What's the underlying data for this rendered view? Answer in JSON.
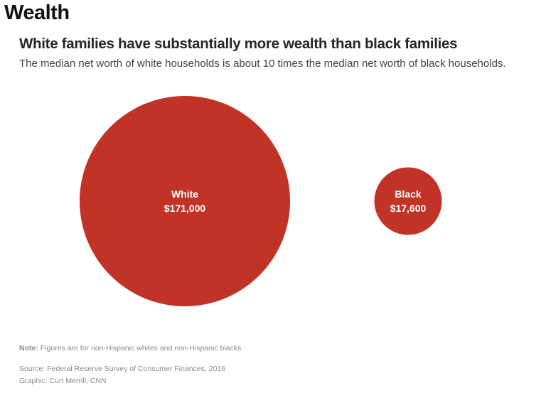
{
  "header": {
    "section": "Wealth"
  },
  "chart_data": {
    "type": "bubble",
    "title": "White families have substantially more wealth than black families",
    "subtitle": "The median net worth of white households is about 10 times the median net worth of black households.",
    "unit": "USD",
    "series": [
      {
        "name": "White",
        "value": 171000,
        "label": "$171,000"
      },
      {
        "name": "Black",
        "value": 17600,
        "label": "$17,600"
      }
    ],
    "color": "#c03326",
    "label_color": "#ffffff"
  },
  "footer": {
    "note_label": "Note:",
    "note_text": "Figures are for non-Hispanic whites and non-Hispanic blacks",
    "source": "Source: Federal Reserve Survey of Consumer Finances, 2016",
    "credit": "Graphic: Curt Merrill, CNN"
  }
}
